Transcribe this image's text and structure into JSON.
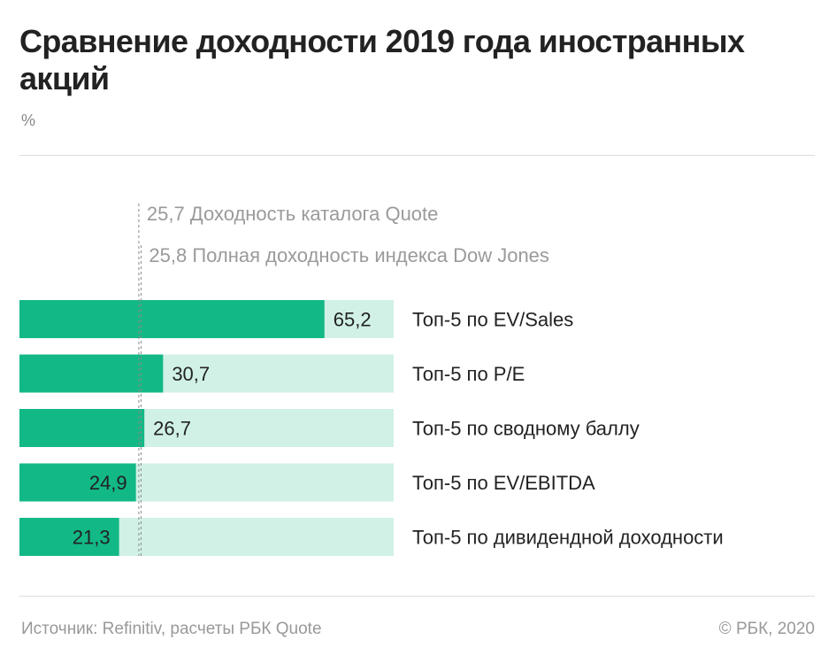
{
  "header": {
    "title": "Сравнение доходности 2019 года иностранных акций",
    "unit": "%"
  },
  "footer": {
    "source": "Источник: Refinitiv, расчеты РБК Quote",
    "copyright": "© РБК, 2020"
  },
  "colors": {
    "bar": "#12b886",
    "track": "#d1f1e6",
    "reference_line": "#8a8a8a"
  },
  "chart_data": {
    "type": "bar",
    "orientation": "horizontal",
    "xlim": [
      0,
      80
    ],
    "categories": [
      "Топ-5 по EV/Sales",
      "Топ-5 по P/E",
      "Топ-5 по сводному баллу",
      "Топ-5 по EV/EBITDA",
      "Топ-5 по дивидендной доходности"
    ],
    "values": [
      65.2,
      30.7,
      26.7,
      24.9,
      21.3
    ],
    "value_labels": [
      "65,2",
      "30,7",
      "26,7",
      "24,9",
      "21,3"
    ],
    "reference_lines": [
      {
        "value": 25.7,
        "value_label": "25,7",
        "label": "Доходность каталога Quote"
      },
      {
        "value": 25.8,
        "value_label": "25,8",
        "label": "Полная доходность индекса Dow Jones"
      }
    ]
  }
}
